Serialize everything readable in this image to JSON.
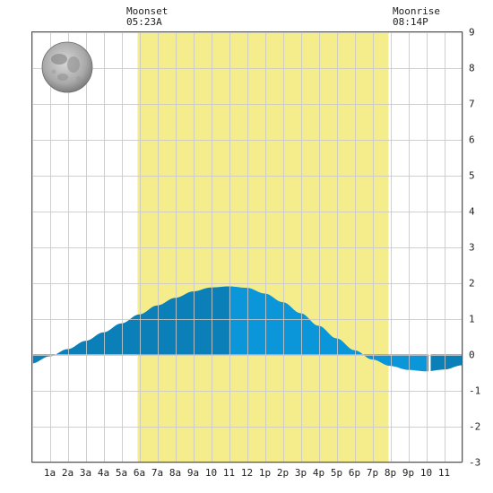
{
  "annotations": {
    "moonset": {
      "label": "Moonset",
      "time": "05:23A"
    },
    "moonrise": {
      "label": "Moonrise",
      "time": "08:14P"
    }
  },
  "moon_phase_icon": "full-moon-icon",
  "colors": {
    "daylight": "#f5ed8c",
    "tide_dark": "#0a7fb8",
    "tide_light": "#0a96d8",
    "grid": "#c8c8c8",
    "border": "#555555"
  },
  "chart_data": {
    "type": "area",
    "x_tick_labels": [
      "1a",
      "2a",
      "3a",
      "4a",
      "5a",
      "6a",
      "7a",
      "8a",
      "9a",
      "10",
      "11",
      "12",
      "1p",
      "2p",
      "3p",
      "4p",
      "5p",
      "6p",
      "7p",
      "8p",
      "9p",
      "10",
      "11"
    ],
    "y_tick_labels": [
      "9",
      "8",
      "7",
      "6",
      "5",
      "4",
      "3",
      "2",
      "1",
      "0",
      "-1",
      "-2",
      "-3"
    ],
    "ylim": [
      -3,
      9
    ],
    "xlim_hours": [
      0,
      24
    ],
    "daylight_hours": [
      5.9,
      19.9
    ],
    "grid": true,
    "series": [
      {
        "x_hours": [
          0,
          1,
          2,
          3,
          4,
          5,
          6,
          7,
          8,
          9,
          10,
          11,
          12,
          13,
          14,
          15,
          16,
          17,
          18,
          19,
          20,
          21,
          22,
          23,
          24
        ],
        "values": [
          -0.25,
          -0.05,
          0.15,
          0.38,
          0.62,
          0.87,
          1.12,
          1.37,
          1.58,
          1.76,
          1.87,
          1.9,
          1.86,
          1.7,
          1.46,
          1.15,
          0.8,
          0.45,
          0.12,
          -0.14,
          -0.32,
          -0.43,
          -0.47,
          -0.42,
          -0.3
        ]
      }
    ],
    "high_tide_hour": 11.0,
    "low_tide_hour": 22.2
  }
}
